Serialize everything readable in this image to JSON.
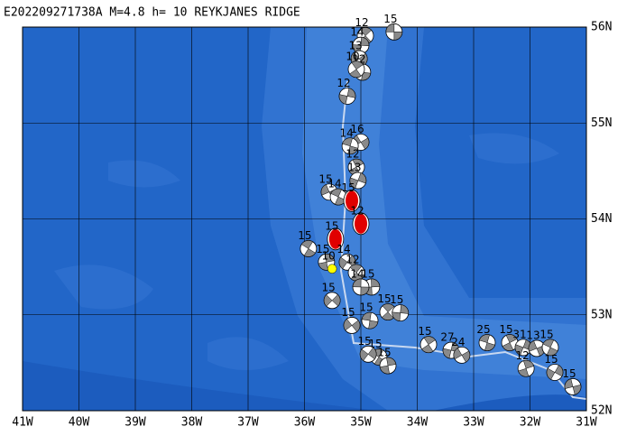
{
  "map": {
    "title": "E202209271738A M=4.8 h= 10 REYKJANES RIDGE",
    "lonlim": [
      -41,
      -31
    ],
    "latlim": [
      52,
      56
    ],
    "lonticks": [
      {
        "value": -41,
        "label": "41W"
      },
      {
        "value": -40,
        "label": "40W"
      },
      {
        "value": -39,
        "label": "39W"
      },
      {
        "value": -38,
        "label": "38W"
      },
      {
        "value": -37,
        "label": "37W"
      },
      {
        "value": -36,
        "label": "36W"
      },
      {
        "value": -35,
        "label": "35W"
      },
      {
        "value": -34,
        "label": "34W"
      },
      {
        "value": -33,
        "label": "33W"
      },
      {
        "value": -32,
        "label": "32W"
      },
      {
        "value": -31,
        "label": "31W"
      }
    ],
    "latticks": [
      {
        "value": 52,
        "label": "52N"
      },
      {
        "value": 53,
        "label": "53N"
      },
      {
        "value": 54,
        "label": "54N"
      },
      {
        "value": 55,
        "label": "55N"
      },
      {
        "value": 56,
        "label": "56N"
      }
    ],
    "grid": true,
    "event_color": "#ffffff",
    "events": [
      {
        "lon": -34.41,
        "lat": 55.95,
        "depth": 15
      },
      {
        "lon": -34.92,
        "lat": 55.91,
        "depth": 12
      },
      {
        "lon": -35.0,
        "lat": 55.81,
        "depth": 14
      },
      {
        "lon": -35.03,
        "lat": 55.67,
        "depth": 13
      },
      {
        "lon": -34.97,
        "lat": 55.53,
        "depth": 12
      },
      {
        "lon": -35.08,
        "lat": 55.56,
        "depth": 10
      },
      {
        "lon": -35.24,
        "lat": 55.28,
        "depth": 12
      },
      {
        "lon": -35.0,
        "lat": 54.8,
        "depth": 16
      },
      {
        "lon": -35.19,
        "lat": 54.76,
        "depth": 14
      },
      {
        "lon": -35.08,
        "lat": 54.54,
        "depth": 12
      },
      {
        "lon": -35.05,
        "lat": 54.4,
        "depth": 13
      },
      {
        "lon": -35.56,
        "lat": 54.28,
        "depth": 15
      },
      {
        "lon": -35.4,
        "lat": 54.23,
        "depth": 14
      },
      {
        "lon": -35.16,
        "lat": 54.19,
        "depth": 15,
        "color": "#e00000"
      },
      {
        "lon": -35.0,
        "lat": 53.95,
        "depth": 12,
        "color": "#e00000"
      },
      {
        "lon": -35.45,
        "lat": 53.79,
        "depth": 15,
        "color": "#e00000"
      },
      {
        "lon": -35.93,
        "lat": 53.69,
        "depth": 15
      },
      {
        "lon": -35.61,
        "lat": 53.55,
        "depth": 15
      },
      {
        "lon": -35.24,
        "lat": 53.55,
        "depth": 14
      },
      {
        "lon": -35.51,
        "lat": 53.48,
        "depth": 10,
        "color": "#ffff00"
      },
      {
        "lon": -35.08,
        "lat": 53.44,
        "depth": 12
      },
      {
        "lon": -34.81,
        "lat": 53.29,
        "depth": 15
      },
      {
        "lon": -35.51,
        "lat": 53.15,
        "depth": 15
      },
      {
        "lon": -35.0,
        "lat": 53.29,
        "depth": 14
      },
      {
        "lon": -34.52,
        "lat": 53.03,
        "depth": 15
      },
      {
        "lon": -34.3,
        "lat": 53.02,
        "depth": 15
      },
      {
        "lon": -35.16,
        "lat": 52.89,
        "depth": 15
      },
      {
        "lon": -34.84,
        "lat": 52.94,
        "depth": 15
      },
      {
        "lon": -33.8,
        "lat": 52.69,
        "depth": 15
      },
      {
        "lon": -33.4,
        "lat": 52.63,
        "depth": 27
      },
      {
        "lon": -33.21,
        "lat": 52.58,
        "depth": 24
      },
      {
        "lon": -32.76,
        "lat": 52.71,
        "depth": 25
      },
      {
        "lon": -32.36,
        "lat": 52.71,
        "depth": 15
      },
      {
        "lon": -32.12,
        "lat": 52.66,
        "depth": 31
      },
      {
        "lon": -31.88,
        "lat": 52.65,
        "depth": 13
      },
      {
        "lon": -31.64,
        "lat": 52.66,
        "depth": 15
      },
      {
        "lon": -32.07,
        "lat": 52.44,
        "depth": 12
      },
      {
        "lon": -31.56,
        "lat": 52.4,
        "depth": 15
      },
      {
        "lon": -31.24,
        "lat": 52.25,
        "depth": 15
      },
      {
        "lon": -34.68,
        "lat": 52.56,
        "depth": 15
      },
      {
        "lon": -34.52,
        "lat": 52.47,
        "depth": 15
      },
      {
        "lon": -34.87,
        "lat": 52.59,
        "depth": 15
      }
    ]
  }
}
